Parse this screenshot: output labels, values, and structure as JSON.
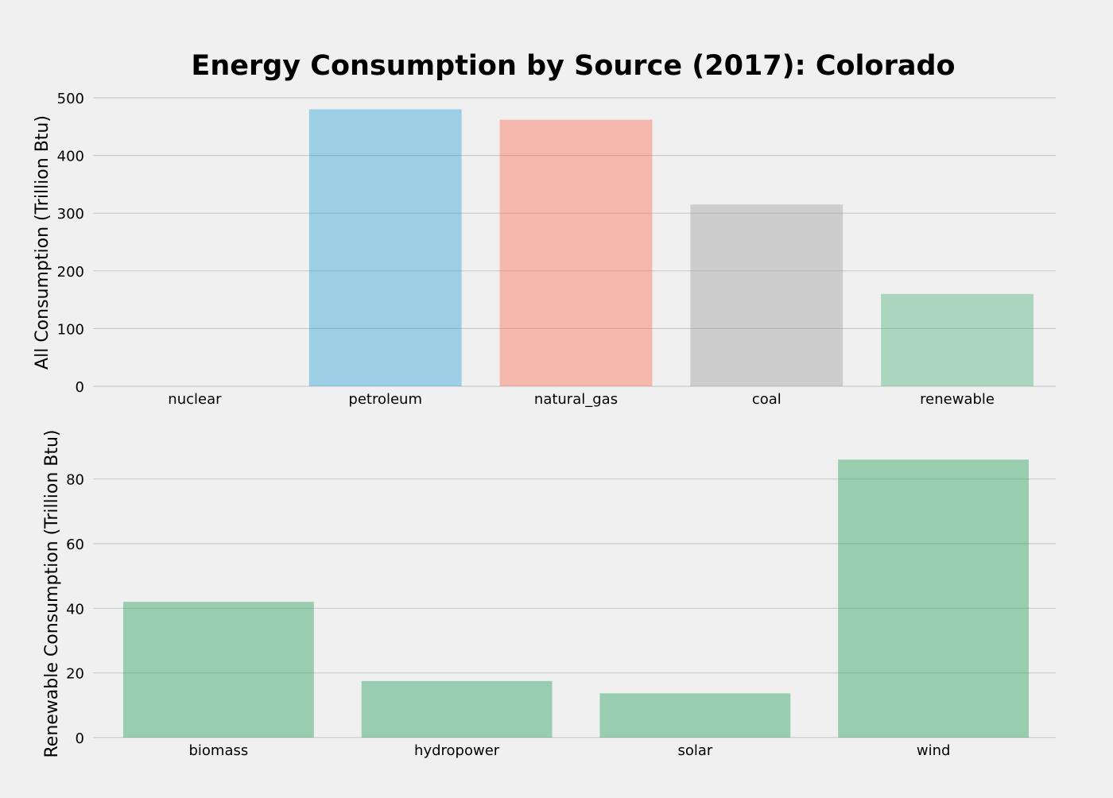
{
  "chart_data": [
    {
      "type": "bar",
      "title": "Energy Consumption by Source (2017): Colorado",
      "xlabel": "",
      "ylabel": "All Consumption (Trillion Btu)",
      "categories": [
        "nuclear",
        "petroleum",
        "natural_gas",
        "coal",
        "renewable"
      ],
      "values": [
        0,
        480,
        462,
        315,
        160
      ],
      "colors": [
        "#008fd5",
        "#008fd5",
        "#fc4f30",
        "#8b8b8b",
        "#2ca25f"
      ],
      "bar_opacity": 0.35,
      "yticks": [
        0,
        100,
        200,
        300,
        400,
        500
      ],
      "ylim": [
        0,
        500
      ],
      "grid": "horizontal"
    },
    {
      "type": "bar",
      "title": "",
      "xlabel": "",
      "ylabel": "Renewable Consumption (Trillion Btu)",
      "categories": [
        "biomass",
        "hydropower",
        "solar",
        "wind"
      ],
      "values": [
        42,
        17.5,
        13.7,
        86
      ],
      "colors": [
        "#2ca25f",
        "#2ca25f",
        "#2ca25f",
        "#2ca25f"
      ],
      "bar_opacity": 0.45,
      "yticks": [
        0,
        20,
        40,
        60,
        80
      ],
      "ylim": [
        0,
        90
      ],
      "grid": "horizontal"
    }
  ],
  "figure": {
    "background": "#f0f0f0"
  }
}
